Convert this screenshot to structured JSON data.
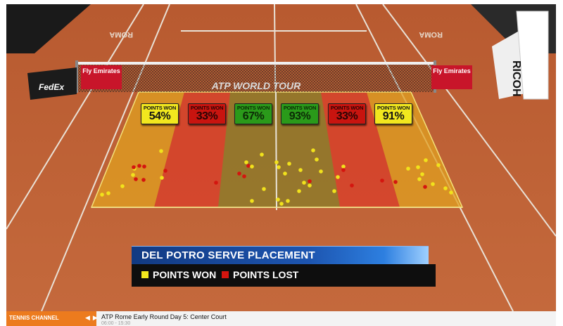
{
  "overlay": {
    "title": "DEL POTRO SERVE PLACEMENT",
    "legend": [
      {
        "label": "POINTS WON",
        "color": "#f2e81e"
      },
      {
        "label": "POINTS LOST",
        "color": "#d4150f"
      }
    ]
  },
  "court": {
    "banner_text": "ATP WORLD TOUR",
    "court_text": "ROMA",
    "sponsor_left": "Fly Emirates",
    "sponsor_right": "Fly Emirates",
    "sponsor_fedex": "FedEx",
    "sponsor_ricoh": "RICOH"
  },
  "zones": [
    {
      "caption": "POINTS WON",
      "value": "54%",
      "style": "yellow"
    },
    {
      "caption": "POINTS WON",
      "value": "33%",
      "style": "red"
    },
    {
      "caption": "POINTS WON",
      "value": "67%",
      "style": "green"
    },
    {
      "caption": "POINTS WON",
      "value": "93%",
      "style": "green"
    },
    {
      "caption": "POINTS WON",
      "value": "33%",
      "style": "red"
    },
    {
      "caption": "POINTS WON",
      "value": "91%",
      "style": "yellow"
    }
  ],
  "ticker": {
    "channel": "TENNIS CHANNEL",
    "title": "ATP Rome Early Round Day 5: Center Court",
    "time": "06:00 - 15:30"
  }
}
